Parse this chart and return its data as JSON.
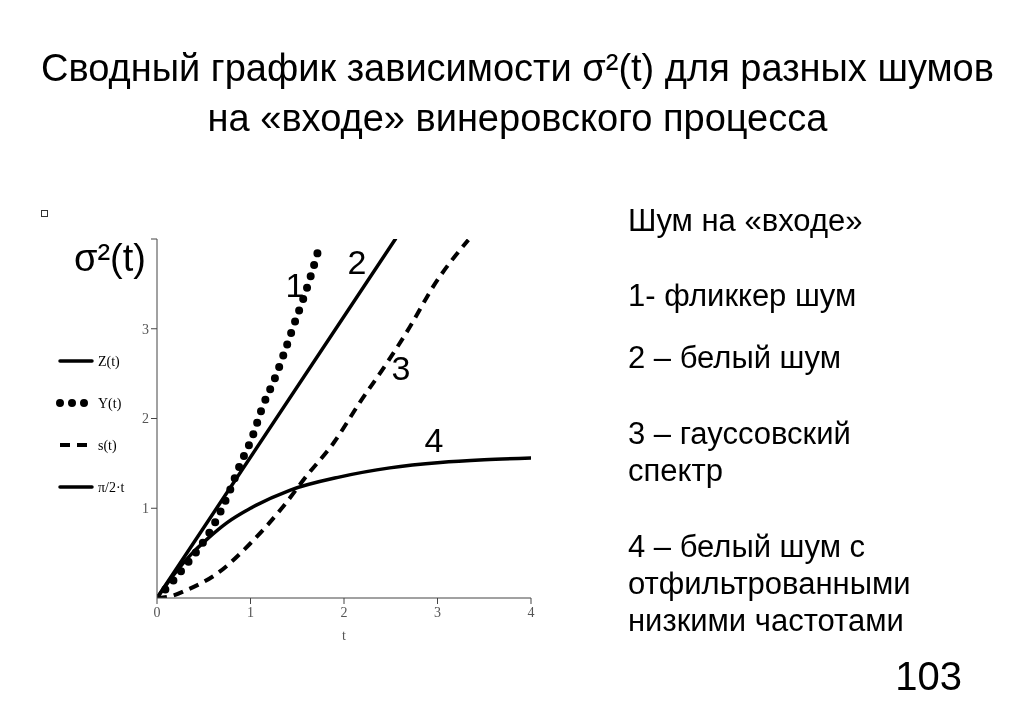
{
  "chart_data": {
    "type": "line",
    "title": "Сводный график зависимости σ²(t) для разных шумов на «входе» винеровского процесса",
    "xlabel": "t",
    "ylabel": "σ²(t)",
    "xlim": [
      0,
      4
    ],
    "ylim": [
      0,
      4
    ],
    "xticks": [
      0,
      1,
      2,
      3,
      4
    ],
    "yticks": [
      1,
      2,
      3,
      {
        "value": 4,
        "label": null
      }
    ],
    "legend": "left",
    "marker": "none",
    "series": [
      {
        "name": "Z(t)",
        "color": "#000000",
        "line_style": "solid",
        "x": [
          0,
          0.18,
          0.36,
          0.53,
          0.75,
          1.0,
          1.42,
          1.96,
          2.49,
          3.03,
          3.5,
          4.0
        ],
        "values": [
          0,
          0.26,
          0.48,
          0.65,
          0.84,
          1.0,
          1.2,
          1.35,
          1.45,
          1.51,
          1.54,
          1.56
        ]
      },
      {
        "name": "Y(t)",
        "color": "#000000",
        "line_style": "dotted",
        "x": [
          0,
          0.18,
          0.32,
          0.46,
          0.6,
          0.78,
          0.89,
          1.01,
          1.14,
          1.25,
          1.35,
          1.48,
          1.57,
          1.66,
          1.74
        ],
        "values": [
          0,
          0.2,
          0.38,
          0.57,
          0.8,
          1.2,
          1.49,
          1.77,
          2.16,
          2.42,
          2.7,
          3.09,
          3.35,
          3.64,
          3.93
        ]
      },
      {
        "name": "s(t)",
        "color": "#000000",
        "line_style": "dashed",
        "x": [
          0,
          0.15,
          0.32,
          0.64,
          1.0,
          1.35,
          1.6,
          1.89,
          2.17,
          2.46,
          2.71,
          2.96,
          3.33
        ],
        "values": [
          0,
          0.02,
          0.09,
          0.27,
          0.61,
          1.02,
          1.36,
          1.73,
          2.18,
          2.62,
          3.03,
          3.48,
          3.99
        ]
      },
      {
        "name": "π/2·t",
        "color": "#000000",
        "line_style": "solid",
        "x": [
          0,
          2.55
        ],
        "values": [
          0,
          4.0
        ]
      }
    ],
    "annotations": [
      "Шум на «входе»",
      "1- фликкер шум",
      "2 – белый шум",
      "3 – гауссовский спектр",
      "4 – белый шум с отфильтрованными низкими частотами",
      "103",
      "1",
      "2",
      "3",
      "4"
    ]
  }
}
